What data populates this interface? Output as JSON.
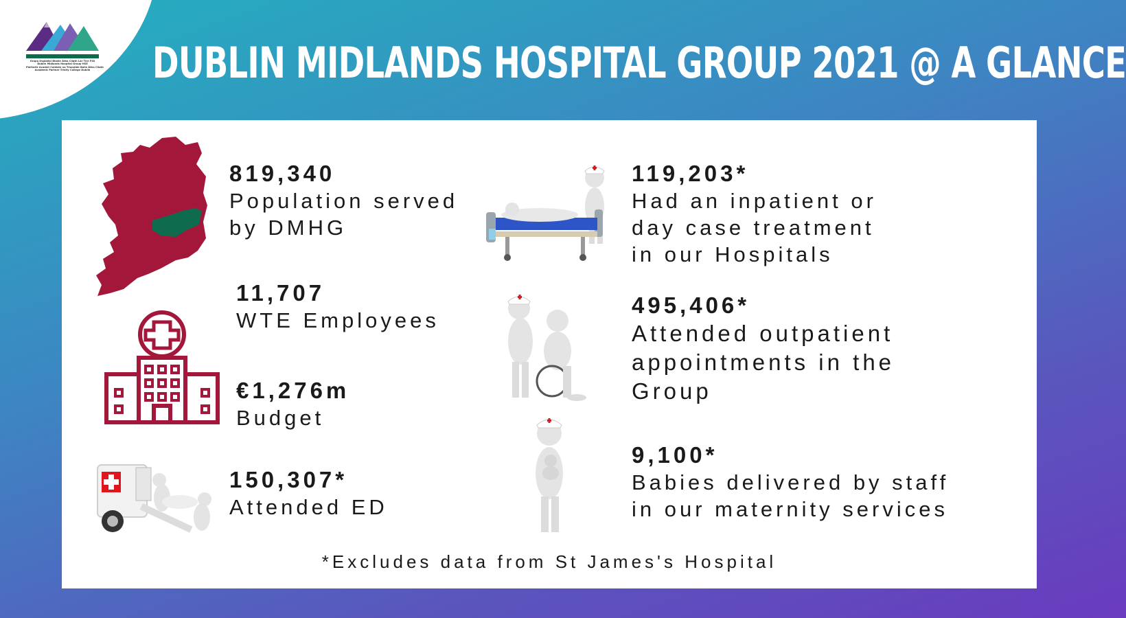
{
  "header": {
    "title": "DUBLIN MIDLANDS HOSPITAL GROUP 2021 @ A GLANCE",
    "logo_lines": [
      "Grúpa Ospidéal Bhaile Átha Cliath Lár Tíre FSS",
      "Dublin Midlands Hospital Group HSE",
      "Páirtnéir Acadúil Coláiste na Tríonóide Baile Átha Cliath",
      "Academic Partner Trinity College Dublin"
    ]
  },
  "stats": {
    "population": {
      "number": "819,340",
      "label": "Population served\nby DMHG"
    },
    "employees": {
      "number": "11,707",
      "label": "WTE Employees"
    },
    "budget": {
      "number": "€1,276m",
      "label": "Budget"
    },
    "ed": {
      "number": "150,307*",
      "label": "Attended ED"
    },
    "inpatient": {
      "number": "119,203*",
      "label": "Had an inpatient or\nday case treatment\nin our Hospitals"
    },
    "outpatient": {
      "number": "495,406*",
      "label": "Attended outpatient\nappointments in the\nGroup"
    },
    "babies": {
      "number": "9,100*",
      "label": "Babies delivered by staff\nin our maternity services"
    }
  },
  "footnote": "*Excludes data from St James's Hospital",
  "colors": {
    "maroon": "#a3173a",
    "green": "#0e6b4e",
    "accent_red": "#e0161e"
  },
  "icons": [
    "ireland-map-icon",
    "hospital-building-icon",
    "ambulance-icon",
    "hospital-bed-icon",
    "wheelchair-icon",
    "nurse-baby-icon",
    "logo-mountains-icon"
  ]
}
